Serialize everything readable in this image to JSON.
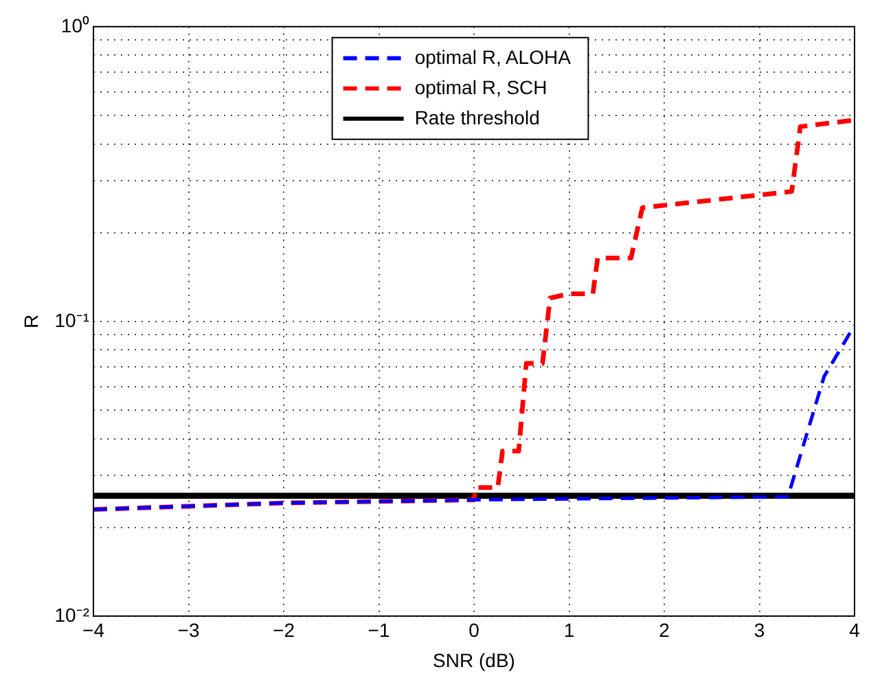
{
  "chart_data": {
    "type": "line",
    "xlabel": "SNR (dB)",
    "ylabel": "R",
    "xlim": [
      -4,
      4
    ],
    "ylim": [
      0.01,
      1
    ],
    "log": "y",
    "grid": true,
    "legend": "top",
    "xticks": [
      {
        "value": -4,
        "label": "−4"
      },
      {
        "value": -3,
        "label": "−3"
      },
      {
        "value": -2,
        "label": "−2"
      },
      {
        "value": -1,
        "label": "−1"
      },
      0,
      1,
      2,
      3,
      4
    ],
    "yticks": [
      {
        "value": 0.01,
        "label": "10⁻²"
      },
      {
        "value": 0.02,
        "label": null
      },
      {
        "value": 0.03,
        "label": null
      },
      {
        "value": 0.04,
        "label": null
      },
      {
        "value": 0.05,
        "label": null
      },
      {
        "value": 0.06,
        "label": null
      },
      {
        "value": 0.07,
        "label": null
      },
      {
        "value": 0.08,
        "label": null
      },
      {
        "value": 0.09,
        "label": null
      },
      {
        "value": 0.1,
        "label": "10⁻¹"
      },
      {
        "value": 0.2,
        "label": null
      },
      {
        "value": 0.3,
        "label": null
      },
      {
        "value": 0.4,
        "label": null
      },
      {
        "value": 0.5,
        "label": null
      },
      {
        "value": 0.6,
        "label": null
      },
      {
        "value": 0.7,
        "label": null
      },
      {
        "value": 0.8,
        "label": null
      },
      {
        "value": 0.9,
        "label": null
      },
      {
        "value": 1,
        "label": "10⁰"
      }
    ],
    "series": [
      {
        "name": "optimal R, ALOHA",
        "color": "#0000ff",
        "line_style": "dashed",
        "x": [
          -4,
          -2,
          0,
          3.3,
          3.68,
          4
        ],
        "values": [
          0.023,
          0.0242,
          0.0248,
          0.0254,
          0.065,
          0.097
        ]
      },
      {
        "name": "optimal R, SCH",
        "color": "#ff0000",
        "line_style": "dashed",
        "x": [
          -4,
          -2,
          0,
          0.02,
          0.25,
          0.3,
          0.47,
          0.55,
          0.72,
          0.8,
          1.0,
          1.25,
          1.3,
          1.65,
          1.77,
          3.34,
          3.43,
          4
        ],
        "values": [
          0.023,
          0.0242,
          0.0248,
          0.0273,
          0.0273,
          0.0363,
          0.0363,
          0.072,
          0.072,
          0.12,
          0.124,
          0.124,
          0.164,
          0.164,
          0.243,
          0.276,
          0.458,
          0.482
        ]
      },
      {
        "name": "Rate threshold",
        "color": "#000000",
        "line_style": "solid",
        "x": [
          -4,
          4
        ],
        "values": [
          0.0256,
          0.0256
        ]
      }
    ]
  }
}
